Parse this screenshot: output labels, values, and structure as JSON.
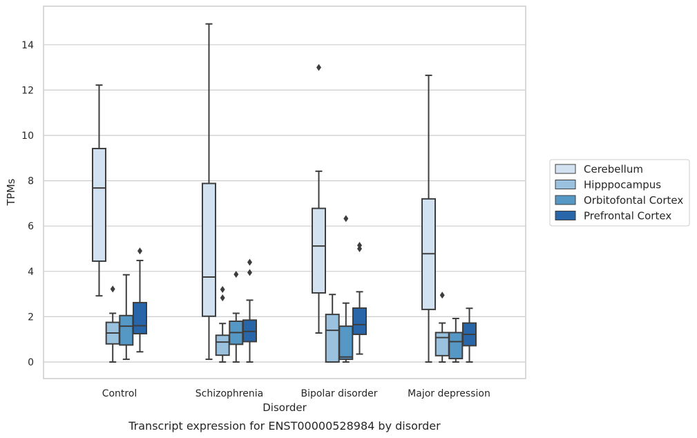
{
  "chart_data": {
    "type": "box",
    "title": "Transcript expression for ENST00000528984 by disorder",
    "xlabel": "Disorder",
    "ylabel": "TPMs",
    "ylim": [
      -0.7,
      15.9
    ],
    "yticks": [
      0,
      2,
      4,
      6,
      8,
      10,
      12,
      14
    ],
    "grid": true,
    "legend_position": "right",
    "categories": [
      "Control",
      "Schizophrenia",
      "Bipolar disorder",
      "Major depression"
    ],
    "series": [
      {
        "name": "Cerebellum",
        "color": "#d2e2f1",
        "boxes": [
          {
            "whislo": 2.92,
            "q1": 4.45,
            "med": 7.68,
            "q3": 9.42,
            "whishi": 12.22,
            "fliers": []
          },
          {
            "whislo": 0.12,
            "q1": 2.02,
            "med": 3.75,
            "q3": 7.88,
            "whishi": 14.92,
            "fliers": []
          },
          {
            "whislo": 1.28,
            "q1": 3.05,
            "med": 5.12,
            "q3": 6.78,
            "whishi": 8.42,
            "fliers": [
              13.0
            ]
          },
          {
            "whislo": 0.0,
            "q1": 2.32,
            "med": 4.78,
            "q3": 7.2,
            "whishi": 12.65,
            "fliers": []
          }
        ]
      },
      {
        "name": "Hipppocampus",
        "color": "#9ac1de",
        "boxes": [
          {
            "whislo": 0.0,
            "q1": 0.8,
            "med": 1.28,
            "q3": 1.75,
            "whishi": 2.15,
            "fliers": [
              3.22
            ]
          },
          {
            "whislo": 0.0,
            "q1": 0.3,
            "med": 0.88,
            "q3": 1.18,
            "whishi": 1.7,
            "fliers": [
              2.83,
              3.2
            ]
          },
          {
            "whislo": 0.0,
            "q1": 0.0,
            "med": 1.4,
            "q3": 2.1,
            "whishi": 2.98,
            "fliers": []
          },
          {
            "whislo": 0.0,
            "q1": 0.28,
            "med": 1.08,
            "q3": 1.3,
            "whishi": 1.72,
            "fliers": [
              2.95
            ]
          }
        ]
      },
      {
        "name": "Orbitofontal Cortex",
        "color": "#5597c5",
        "boxes": [
          {
            "whislo": 0.12,
            "q1": 0.75,
            "med": 1.58,
            "q3": 2.05,
            "whishi": 3.85,
            "fliers": []
          },
          {
            "whislo": 0.0,
            "q1": 0.78,
            "med": 1.3,
            "q3": 1.8,
            "whishi": 2.15,
            "fliers": [
              3.87
            ]
          },
          {
            "whislo": 0.0,
            "q1": 0.12,
            "med": 0.22,
            "q3": 1.58,
            "whishi": 2.6,
            "fliers": [
              6.33
            ]
          },
          {
            "whislo": 0.0,
            "q1": 0.15,
            "med": 0.9,
            "q3": 1.3,
            "whishi": 1.92,
            "fliers": []
          }
        ]
      },
      {
        "name": "Prefrontal Cortex",
        "color": "#2866a9",
        "boxes": [
          {
            "whislo": 0.45,
            "q1": 1.25,
            "med": 1.6,
            "q3": 2.62,
            "whishi": 4.48,
            "fliers": [
              4.9
            ]
          },
          {
            "whislo": 0.0,
            "q1": 0.9,
            "med": 1.35,
            "q3": 1.85,
            "whishi": 2.73,
            "fliers": [
              3.95,
              4.4
            ]
          },
          {
            "whislo": 0.35,
            "q1": 1.22,
            "med": 1.65,
            "q3": 2.38,
            "whishi": 3.1,
            "fliers": [
              5.0,
              5.15
            ]
          },
          {
            "whislo": 0.0,
            "q1": 0.72,
            "med": 1.22,
            "q3": 1.72,
            "whishi": 2.37,
            "fliers": []
          }
        ]
      }
    ]
  }
}
